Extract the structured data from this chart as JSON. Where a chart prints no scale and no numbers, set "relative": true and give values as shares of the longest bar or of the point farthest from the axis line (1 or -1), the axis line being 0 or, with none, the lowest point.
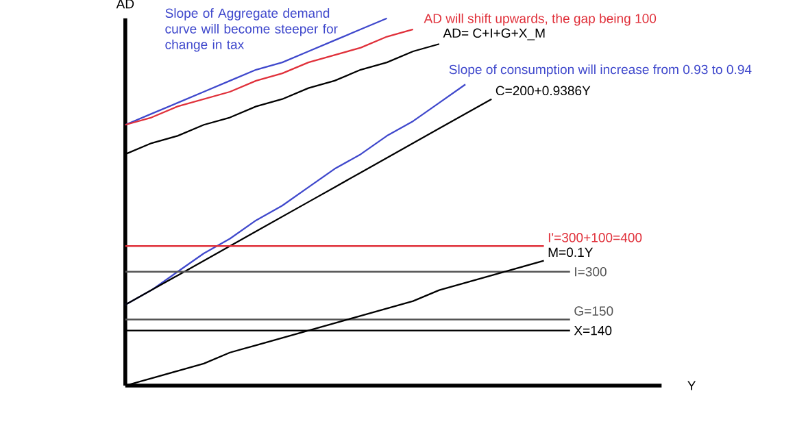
{
  "chart_data": {
    "type": "line",
    "relative": true,
    "xlabel": "Y",
    "ylabel": "AD",
    "categories": [
      null,
      null,
      null,
      null,
      null,
      null,
      null,
      null,
      null,
      null,
      null,
      null,
      null,
      null,
      null,
      null,
      null,
      null,
      null,
      null,
      null
    ],
    "annotations": [
      "Slope of Aggregate demand curve will become steeper for change in tax",
      "AD will shift upwards, the gap being 100",
      "Slope of consumption will increase from 0.93 to 0.94"
    ],
    "series": [
      {
        "color": "#3f48cc",
        "values": [
          0.71,
          0.74,
          0.77,
          0.8,
          0.83,
          0.86,
          0.88,
          0.91,
          0.94,
          0.97,
          1.0,
          null,
          null,
          null,
          null,
          null,
          null,
          null,
          null,
          null,
          null
        ]
      },
      {
        "color": "#e0303a",
        "values": [
          0.71,
          0.73,
          0.76,
          0.78,
          0.8,
          0.83,
          0.85,
          0.88,
          0.9,
          0.92,
          0.95,
          0.97,
          null,
          null,
          null,
          null,
          null,
          null,
          null,
          null,
          null
        ]
      },
      {
        "name": "AD= C+I+G+X_M",
        "color": "#000000",
        "values": [
          0.63,
          0.66,
          0.68,
          0.71,
          0.73,
          0.76,
          0.78,
          0.81,
          0.83,
          0.86,
          0.88,
          0.91,
          0.93,
          null,
          null,
          null,
          null,
          null,
          null,
          null,
          null
        ]
      },
      {
        "color": "#3f48cc",
        "values": [
          0.22,
          0.26,
          0.31,
          0.36,
          0.4,
          0.45,
          0.49,
          0.54,
          0.59,
          0.63,
          0.68,
          0.72,
          0.77,
          0.82,
          null,
          null,
          null,
          null,
          null,
          null,
          null
        ]
      },
      {
        "name": "C=200+0.9386Y",
        "color": "#000000",
        "values": [
          0.22,
          0.26,
          0.3,
          0.34,
          0.38,
          0.42,
          0.46,
          0.5,
          0.54,
          0.58,
          0.62,
          0.66,
          0.7,
          0.74,
          0.78,
          null,
          null,
          null,
          null,
          null,
          null
        ]
      },
      {
        "name": "I'=300+100=400",
        "color": "#e0303a",
        "values": [
          0.38,
          0.38,
          0.38,
          0.38,
          0.38,
          0.38,
          0.38,
          0.38,
          0.38,
          0.38,
          0.38,
          0.38,
          0.38,
          0.38,
          0.38,
          0.38,
          0.38,
          null,
          null,
          null,
          null
        ]
      },
      {
        "name": "I=300",
        "color": "#555555",
        "values": [
          0.31,
          0.31,
          0.31,
          0.31,
          0.31,
          0.31,
          0.31,
          0.31,
          0.31,
          0.31,
          0.31,
          0.31,
          0.31,
          0.31,
          0.31,
          0.31,
          0.31,
          0.31,
          null,
          null,
          null
        ]
      },
      {
        "name": "G=150",
        "color": "#555555",
        "values": [
          0.18,
          0.18,
          0.18,
          0.18,
          0.18,
          0.18,
          0.18,
          0.18,
          0.18,
          0.18,
          0.18,
          0.18,
          0.18,
          0.18,
          0.18,
          0.18,
          0.18,
          0.18,
          null,
          null,
          null
        ]
      },
      {
        "name": "X=140",
        "color": "#000000",
        "values": [
          0.15,
          0.15,
          0.15,
          0.15,
          0.15,
          0.15,
          0.15,
          0.15,
          0.15,
          0.15,
          0.15,
          0.15,
          0.15,
          0.15,
          0.15,
          0.15,
          0.15,
          0.15,
          null,
          null,
          null
        ]
      },
      {
        "name": "M=0.1Y",
        "color": "#000000",
        "values": [
          0.0,
          0.02,
          0.04,
          0.06,
          0.09,
          0.11,
          0.13,
          0.15,
          0.17,
          0.19,
          0.21,
          0.23,
          0.26,
          0.28,
          0.3,
          0.32,
          0.34,
          null,
          null,
          null,
          null
        ]
      }
    ]
  }
}
